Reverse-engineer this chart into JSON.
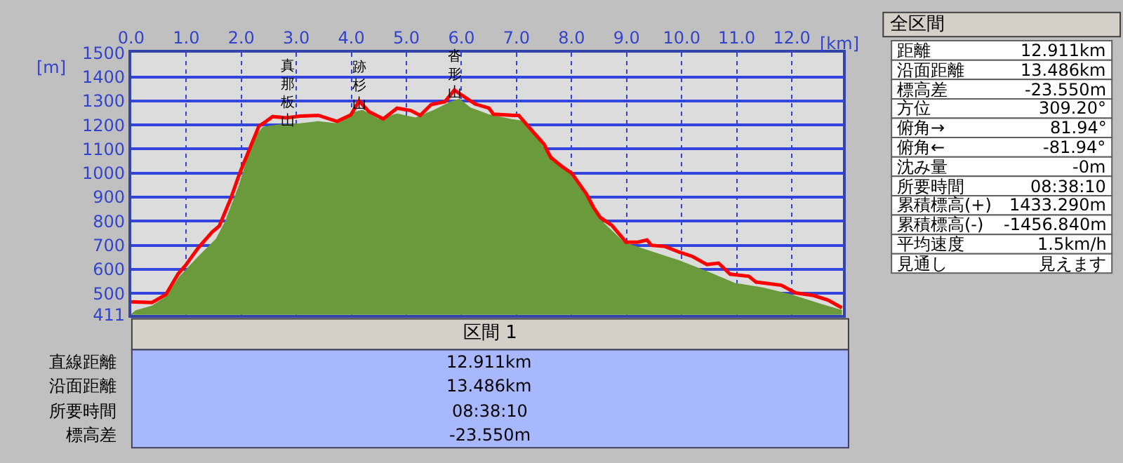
{
  "chart_data": [
    {
      "type": "area",
      "xlabel": "[km]",
      "ylabel": "[m]",
      "xlim": [
        0,
        12.93
      ],
      "xticks": [
        {
          "value": 0,
          "label": "0.0"
        },
        {
          "value": 1,
          "label": "1.0"
        },
        {
          "value": 2,
          "label": "2.0"
        },
        {
          "value": 3,
          "label": "3.0"
        },
        {
          "value": 4,
          "label": "4.0"
        },
        {
          "value": 5,
          "label": "5.0"
        },
        {
          "value": 6,
          "label": "6.0"
        },
        {
          "value": 7,
          "label": "7.0"
        },
        {
          "value": 8,
          "label": "8.0"
        },
        {
          "value": 9,
          "label": "9.0"
        },
        {
          "value": 10,
          "label": "10.0"
        },
        {
          "value": 11,
          "label": "11.0"
        },
        {
          "value": 12,
          "label": "12.0"
        }
      ],
      "ylim": [
        411,
        1500
      ],
      "yticks": [
        411,
        500,
        600,
        700,
        800,
        900,
        1000,
        1100,
        1200,
        1300,
        1400,
        1500
      ],
      "grid": true,
      "series": [
        {
          "type": "area",
          "color": "#6b9a3c",
          "x": [
            0,
            0.09,
            0.38,
            0.63,
            0.88,
            1.22,
            1.55,
            1.72,
            1.97,
            2.22,
            2.4,
            2.65,
            3.07,
            3.4,
            3.74,
            4.03,
            4.2,
            4.49,
            4.83,
            5.16,
            5.5,
            5.83,
            5.96,
            6.16,
            6.5,
            6.91,
            7.16,
            7.5,
            7.92,
            8.27,
            8.52,
            8.95,
            9.45,
            9.95,
            10.46,
            10.96,
            11.47,
            11.97,
            12.48,
            12.91
          ],
          "values": [
            411,
            427,
            446,
            483,
            567,
            650,
            725,
            800,
            950,
            1140,
            1190,
            1198,
            1204,
            1213,
            1204,
            1250,
            1260,
            1222,
            1245,
            1228,
            1260,
            1297,
            1306,
            1270,
            1241,
            1222,
            1213,
            1100,
            1008,
            897,
            804,
            710,
            672,
            635,
            589,
            541,
            522,
            494,
            457,
            428
          ]
        },
        {
          "type": "line",
          "color": "#ff0000",
          "x": [
            0,
            0.38,
            0.63,
            0.85,
            1.0,
            1.22,
            1.47,
            1.6,
            1.81,
            1.98,
            2.15,
            2.32,
            2.45,
            2.57,
            2.82,
            3.07,
            3.4,
            3.74,
            3.99,
            4.14,
            4.32,
            4.58,
            4.83,
            5.08,
            5.25,
            5.45,
            5.7,
            5.87,
            6.0,
            6.25,
            6.5,
            6.58,
            6.96,
            7.04,
            7.25,
            7.5,
            7.62,
            7.83,
            8.0,
            8.27,
            8.4,
            8.52,
            8.73,
            8.99,
            9.2,
            9.37,
            9.45,
            9.7,
            9.95,
            10.2,
            10.46,
            10.67,
            10.88,
            11.22,
            11.35,
            11.81,
            12.07,
            12.4,
            12.66,
            12.91
          ],
          "values": [
            465,
            462,
            495,
            580,
            620,
            690,
            755,
            780,
            895,
            1005,
            1100,
            1195,
            1215,
            1235,
            1230,
            1237,
            1240,
            1215,
            1242,
            1300,
            1255,
            1225,
            1270,
            1260,
            1240,
            1285,
            1297,
            1345,
            1325,
            1287,
            1270,
            1245,
            1240,
            1240,
            1185,
            1120,
            1065,
            1027,
            1000,
            913,
            857,
            816,
            783,
            713,
            713,
            722,
            700,
            695,
            672,
            653,
            620,
            626,
            580,
            571,
            547,
            534,
            502,
            491,
            472,
            440
          ]
        }
      ],
      "annotations": [
        {
          "text": "真那板山",
          "x": 2.82,
          "y": 1230
        },
        {
          "text": "跡杉山",
          "x": 4.14,
          "y": 1300
        },
        {
          "text": "沓形山",
          "x": 5.87,
          "y": 1345
        }
      ]
    },
    {
      "type": "other",
      "title": "全区間",
      "annotations": [
        "距離",
        "12.911km",
        "沿面距離",
        "13.486km",
        "標高差",
        "-23.550m",
        "方位",
        "309.20°",
        "俯角→",
        "81.94°",
        "俯角←",
        "-81.94°",
        "沈み量",
        "-0m",
        "所要時間",
        "08:38:10",
        "累積標高(+)",
        "1433.290m",
        "累積標高(-)",
        "-1456.840m",
        "平均速度",
        "1.5km/h",
        "見通し",
        "見えます"
      ]
    },
    {
      "type": "other",
      "title": "区間 1",
      "annotations": [
        "直線距離",
        "12.911km",
        "沿面距離",
        "13.486km",
        "所要時間",
        "08:38:10",
        "標高差",
        "-23.550m"
      ]
    }
  ]
}
